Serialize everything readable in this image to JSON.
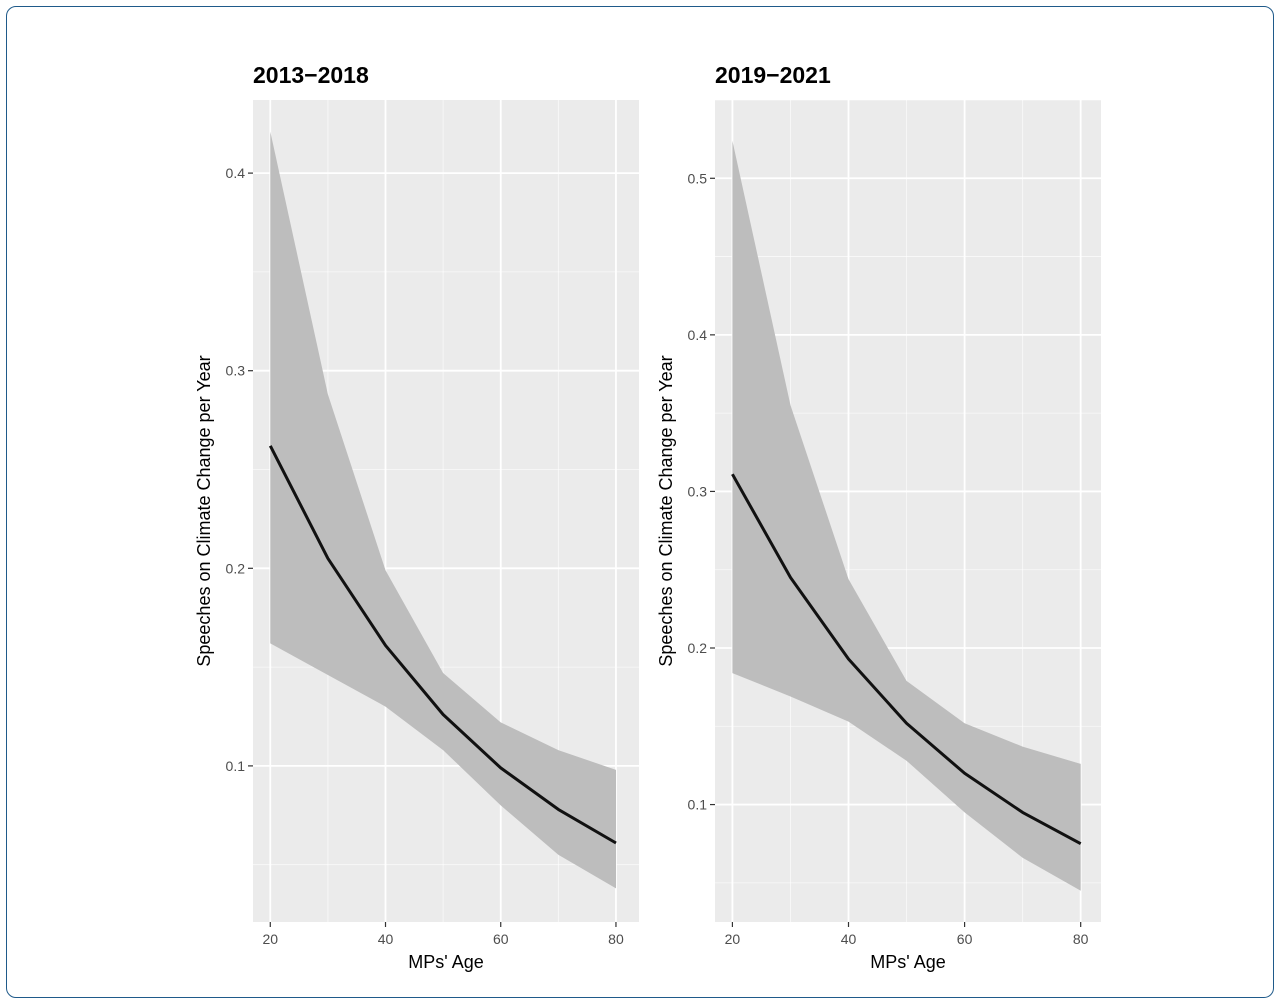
{
  "chart_data": [
    {
      "type": "line",
      "title": "2013−2018",
      "xlabel": "MPs' Age",
      "ylabel": "Speeches on Climate Change per Year",
      "x": [
        20,
        30,
        40,
        50,
        60,
        70,
        80
      ],
      "series": [
        {
          "values": [
            0.262,
            0.205,
            0.161,
            0.126,
            0.099,
            0.078,
            0.061
          ]
        }
      ],
      "ribbon_upper": [
        0.421,
        0.288,
        0.199,
        0.147,
        0.122,
        0.108,
        0.098
      ],
      "ribbon_lower": [
        0.162,
        0.146,
        0.13,
        0.108,
        0.08,
        0.055,
        0.038
      ],
      "xticks": [
        20,
        40,
        60,
        80
      ],
      "yticks": [
        0.1,
        0.2,
        0.3,
        0.4
      ],
      "xlim": [
        17,
        84
      ],
      "ylim": [
        0.021,
        0.437
      ],
      "grid": true,
      "colors": {
        "panel_bg": "#ebebeb",
        "grid": "#ffffff",
        "ribbon": "#bdbdbd",
        "line": "#111111"
      }
    },
    {
      "type": "line",
      "title": "2019−2021",
      "xlabel": "MPs' Age",
      "ylabel": "Speeches on Climate Change per Year",
      "x": [
        20,
        30,
        40,
        50,
        60,
        70,
        80
      ],
      "series": [
        {
          "values": [
            0.311,
            0.245,
            0.193,
            0.152,
            0.12,
            0.095,
            0.075
          ]
        }
      ],
      "ribbon_upper": [
        0.524,
        0.355,
        0.244,
        0.179,
        0.152,
        0.137,
        0.126
      ],
      "ribbon_lower": [
        0.184,
        0.169,
        0.153,
        0.128,
        0.095,
        0.066,
        0.045
      ],
      "xticks": [
        20,
        40,
        60,
        80
      ],
      "yticks": [
        0.1,
        0.2,
        0.3,
        0.4,
        0.5
      ],
      "xlim": [
        17,
        83.5
      ],
      "ylim": [
        0.025,
        0.55
      ],
      "grid": true,
      "colors": {
        "panel_bg": "#ebebeb",
        "grid": "#ffffff",
        "ribbon": "#bdbdbd",
        "line": "#111111"
      }
    }
  ]
}
